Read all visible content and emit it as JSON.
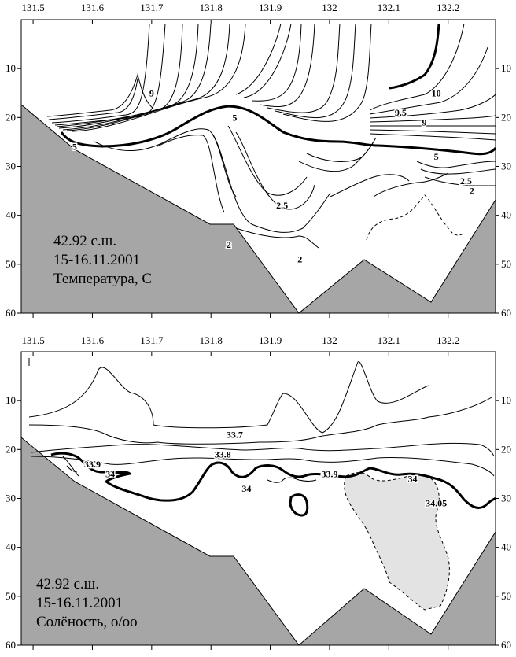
{
  "chart_data": [
    {
      "type": "contour",
      "x_ticks": [
        "131.5",
        "131.6",
        "131.7",
        "131.8",
        "131.9",
        "132",
        "132.1",
        "132.2"
      ],
      "x_tick_values": [
        131.5,
        131.6,
        131.7,
        131.8,
        131.9,
        132.0,
        132.1,
        132.2
      ],
      "y_ticks": [
        "10",
        "20",
        "30",
        "40",
        "50",
        "60"
      ],
      "y_tick_values": [
        10,
        20,
        30,
        40,
        50,
        60
      ],
      "xlim": [
        131.48,
        132.28
      ],
      "ylim": [
        60,
        0
      ],
      "annotation_lines": [
        "42.92 с.ш.",
        "15-16.11.2001",
        "Температура, С"
      ],
      "contour_labels": [
        {
          "text": "9",
          "x": 131.7,
          "y": 15
        },
        {
          "text": "10",
          "x": 132.18,
          "y": 15
        },
        {
          "text": "9.5",
          "x": 132.12,
          "y": 19
        },
        {
          "text": "9",
          "x": 132.16,
          "y": 21
        },
        {
          "text": "5",
          "x": 131.84,
          "y": 20
        },
        {
          "text": "5",
          "x": 131.57,
          "y": 26
        },
        {
          "text": "5",
          "x": 132.18,
          "y": 28
        },
        {
          "text": "2.5",
          "x": 132.23,
          "y": 33
        },
        {
          "text": "2",
          "x": 132.24,
          "y": 35
        },
        {
          "text": "2.5",
          "x": 131.92,
          "y": 38
        },
        {
          "text": "2",
          "x": 131.83,
          "y": 46
        },
        {
          "text": "2",
          "x": 131.95,
          "y": 49
        }
      ],
      "bottom_profile": [
        [
          131.48,
          19
        ],
        [
          131.6,
          27
        ],
        [
          131.8,
          42
        ],
        [
          131.85,
          42
        ],
        [
          131.95,
          60
        ],
        [
          132.06,
          49
        ],
        [
          132.19,
          58
        ],
        [
          132.28,
          37
        ]
      ]
    },
    {
      "type": "contour",
      "x_ticks": [
        "131.5",
        "131.6",
        "131.7",
        "131.8",
        "131.9",
        "132",
        "132.1",
        "132.2"
      ],
      "x_tick_values": [
        131.5,
        131.6,
        131.7,
        131.8,
        131.9,
        132.0,
        132.1,
        132.2
      ],
      "y_ticks": [
        "10",
        "20",
        "30",
        "40",
        "50",
        "60"
      ],
      "y_tick_values": [
        10,
        20,
        30,
        40,
        50,
        60
      ],
      "xlim": [
        131.48,
        132.28
      ],
      "ylim": [
        60,
        0
      ],
      "annotation_lines": [
        "42.92 с.ш.",
        "15-16.11.2001",
        "Солёность, о/оо"
      ],
      "contour_labels": [
        {
          "text": "33.7",
          "x": 131.84,
          "y": 17
        },
        {
          "text": "33.8",
          "x": 131.82,
          "y": 21
        },
        {
          "text": "33.9",
          "x": 131.6,
          "y": 23
        },
        {
          "text": "34",
          "x": 131.63,
          "y": 25
        },
        {
          "text": "34",
          "x": 131.86,
          "y": 28
        },
        {
          "text": "33.9",
          "x": 132.0,
          "y": 25
        },
        {
          "text": "34",
          "x": 132.14,
          "y": 26
        },
        {
          "text": "34.05",
          "x": 132.18,
          "y": 31
        }
      ],
      "bottom_profile": [
        [
          131.48,
          19
        ],
        [
          131.6,
          27
        ],
        [
          131.8,
          42
        ],
        [
          131.85,
          42
        ],
        [
          131.95,
          60
        ],
        [
          132.06,
          49
        ],
        [
          132.19,
          58
        ],
        [
          132.28,
          37
        ]
      ]
    }
  ]
}
